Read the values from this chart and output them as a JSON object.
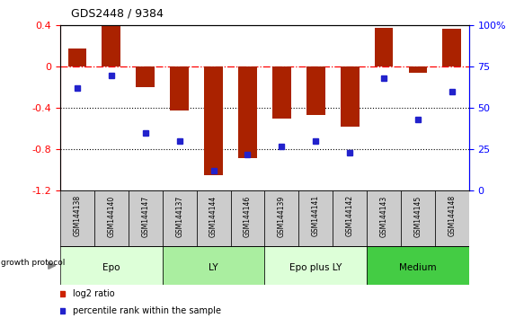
{
  "title": "GDS2448 / 9384",
  "samples": [
    "GSM144138",
    "GSM144140",
    "GSM144147",
    "GSM144137",
    "GSM144144",
    "GSM144146",
    "GSM144139",
    "GSM144141",
    "GSM144142",
    "GSM144143",
    "GSM144145",
    "GSM144148"
  ],
  "log2_ratio": [
    0.18,
    0.39,
    -0.2,
    -0.42,
    -1.05,
    -0.88,
    -0.5,
    -0.47,
    -0.58,
    0.38,
    -0.06,
    0.37
  ],
  "percentile_rank": [
    62,
    70,
    35,
    30,
    12,
    22,
    27,
    30,
    23,
    68,
    43,
    60
  ],
  "ylim_left": [
    -1.2,
    0.4
  ],
  "ylim_right": [
    0,
    100
  ],
  "yticks_left": [
    -1.2,
    -0.8,
    -0.4,
    0.0,
    0.4
  ],
  "yticks_right": [
    0,
    25,
    50,
    75,
    100
  ],
  "ytick_labels_right": [
    "0",
    "25",
    "50",
    "75",
    "100%"
  ],
  "hline_y": 0.0,
  "dotted_lines": [
    -0.4,
    -0.8
  ],
  "bar_color": "#AA2200",
  "dot_color": "#2222CC",
  "groups": [
    {
      "label": "Epo",
      "start": 0,
      "end": 3,
      "color": "#DDFFD8"
    },
    {
      "label": "LY",
      "start": 3,
      "end": 6,
      "color": "#AAEEA0"
    },
    {
      "label": "Epo plus LY",
      "start": 6,
      "end": 9,
      "color": "#DDFFD8"
    },
    {
      "label": "Medium",
      "start": 9,
      "end": 12,
      "color": "#44CC44"
    }
  ],
  "growth_protocol_label": "growth protocol",
  "legend_items": [
    {
      "color": "#CC2200",
      "label": "log2 ratio"
    },
    {
      "color": "#2222CC",
      "label": "percentile rank within the sample"
    }
  ],
  "sample_box_color": "#CCCCCC",
  "background_color": "#FFFFFF"
}
